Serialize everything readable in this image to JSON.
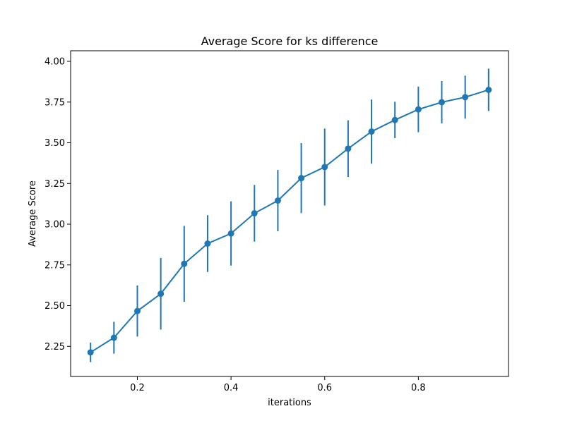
{
  "chart_data": {
    "type": "line",
    "title": "Average Score for ks difference",
    "xlabel": "iterations",
    "ylabel": "Average Score",
    "xlim": [
      0.0575,
      0.9925
    ],
    "ylim": [
      2.065,
      4.065
    ],
    "xticks": [
      0.2,
      0.4,
      0.6,
      0.8
    ],
    "xtick_labels": [
      "0.2",
      "0.4",
      "0.6",
      "0.8"
    ],
    "yticks": [
      2.25,
      2.5,
      2.75,
      3.0,
      3.25,
      3.5,
      3.75,
      4.0
    ],
    "ytick_labels": [
      "2.25",
      "2.50",
      "2.75",
      "3.00",
      "3.25",
      "3.50",
      "3.75",
      "4.00"
    ],
    "grid": false,
    "series": [
      {
        "color": "#1f77b4",
        "marker": "circle",
        "error_bars": true,
        "x": [
          0.1,
          0.15,
          0.2,
          0.25,
          0.3,
          0.35,
          0.4,
          0.45,
          0.5,
          0.55,
          0.6,
          0.65,
          0.7,
          0.75,
          0.8,
          0.85,
          0.9,
          0.95
        ],
        "y": [
          2.213,
          2.303,
          2.467,
          2.573,
          2.757,
          2.881,
          2.943,
          3.067,
          3.145,
          3.283,
          3.351,
          3.464,
          3.569,
          3.64,
          3.705,
          3.749,
          3.78,
          3.825
        ],
        "yerr": [
          0.06,
          0.098,
          0.157,
          0.22,
          0.233,
          0.174,
          0.197,
          0.174,
          0.188,
          0.215,
          0.236,
          0.174,
          0.197,
          0.112,
          0.14,
          0.13,
          0.132,
          0.13
        ]
      }
    ]
  }
}
